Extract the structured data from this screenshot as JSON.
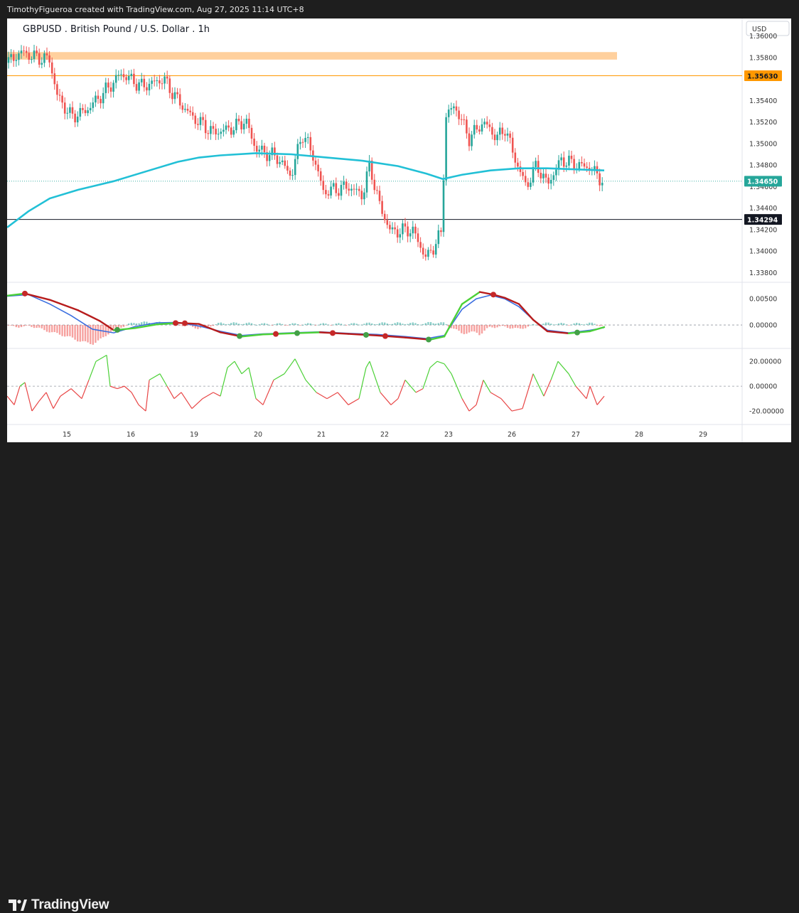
{
  "header": {
    "watermark": "TimothyFigueroa created with TradingView.com, Aug 27, 2025 11:14 UTC+8"
  },
  "footer": {
    "brand": "TradingView"
  },
  "colors": {
    "up": "#26a69a",
    "down": "#ef5350",
    "ma": "#22c0d6",
    "zone": "#ffa94d",
    "macd_line": "#3b6fe0",
    "signal_line": "#b71c1c",
    "osc_up": "#4cd137",
    "osc_down": "#e84545",
    "dot_red": "#c62828",
    "dot_green": "#43a047"
  },
  "chart_data": [
    {
      "type": "candlestick",
      "title": "GBPUSD . British Pound / U.S. Dollar . 1h",
      "currency": "USD",
      "x_ticks": [
        "15",
        "16",
        "19",
        "20",
        "21",
        "22",
        "23",
        "26",
        "27",
        "28",
        "29"
      ],
      "y_ticks": [
        "1.36000",
        "1.35800",
        "1.35400",
        "1.35200",
        "1.35000",
        "1.34800",
        "1.34600",
        "1.34400",
        "1.34200",
        "1.34000",
        "1.33800"
      ],
      "ylim": [
        1.3375,
        1.3603
      ],
      "price_labels": [
        {
          "value": 1.3563,
          "text": "1.35630",
          "color": "#ff9800",
          "text_color": "#131722"
        },
        {
          "value": 1.3465,
          "text": "1.34650",
          "color": "#26a69a",
          "text_color": "#ffffff"
        },
        {
          "value": 1.34294,
          "text": "1.34294",
          "color": "#131722",
          "text_color": "#ffffff"
        }
      ],
      "resistance_zone": [
        1.3578,
        1.3585
      ],
      "horizontal_lines": [
        1.3563,
        1.34294
      ],
      "moving_average": {
        "points": [
          [
            0,
            1.3422
          ],
          [
            30,
            1.3437
          ],
          [
            60,
            1.3449
          ],
          [
            100,
            1.3457
          ],
          [
            150,
            1.3465
          ],
          [
            200,
            1.3475
          ],
          [
            240,
            1.3483
          ],
          [
            270,
            1.3487
          ],
          [
            300,
            1.3489
          ],
          [
            350,
            1.3491
          ],
          [
            400,
            1.349
          ],
          [
            450,
            1.3487
          ],
          [
            500,
            1.3484
          ],
          [
            550,
            1.3479
          ],
          [
            590,
            1.3472
          ],
          [
            613,
            1.3467
          ],
          [
            640,
            1.3471
          ],
          [
            680,
            1.3475
          ],
          [
            720,
            1.3477
          ],
          [
            760,
            1.3477
          ],
          [
            800,
            1.3476
          ],
          [
            840,
            1.3475
          ]
        ]
      },
      "candle_path": [
        [
          0,
          1.3575
        ],
        [
          20,
          1.3585
        ],
        [
          40,
          1.358
        ],
        [
          60,
          1.3578
        ],
        [
          70,
          1.3545
        ],
        [
          90,
          1.3525
        ],
        [
          110,
          1.353
        ],
        [
          140,
          1.355
        ],
        [
          160,
          1.3565
        ],
        [
          190,
          1.3553
        ],
        [
          220,
          1.356
        ],
        [
          240,
          1.354
        ],
        [
          260,
          1.3525
        ],
        [
          290,
          1.351
        ],
        [
          320,
          1.3515
        ],
        [
          335,
          1.3522
        ],
        [
          350,
          1.3495
        ],
        [
          380,
          1.3487
        ],
        [
          400,
          1.347
        ],
        [
          415,
          1.351
        ],
        [
          430,
          1.349
        ],
        [
          445,
          1.3455
        ],
        [
          480,
          1.346
        ],
        [
          500,
          1.3452
        ],
        [
          510,
          1.348
        ],
        [
          525,
          1.344
        ],
        [
          540,
          1.3418
        ],
        [
          570,
          1.342
        ],
        [
          590,
          1.3393
        ],
        [
          612,
          1.3418
        ],
        [
          616,
          1.3525
        ],
        [
          630,
          1.3535
        ],
        [
          650,
          1.3505
        ],
        [
          670,
          1.352
        ],
        [
          690,
          1.3505
        ],
        [
          700,
          1.3515
        ],
        [
          715,
          1.3485
        ],
        [
          730,
          1.346
        ],
        [
          745,
          1.348
        ],
        [
          760,
          1.3462
        ],
        [
          780,
          1.3485
        ],
        [
          800,
          1.348
        ],
        [
          820,
          1.3478
        ],
        [
          838,
          1.3465
        ]
      ]
    },
    {
      "type": "line",
      "name": "macd",
      "y_ticks": [
        "0.00500",
        "0.00000"
      ],
      "ylim": [
        -0.0042,
        0.0072
      ],
      "macd": [
        [
          0,
          0.0055
        ],
        [
          30,
          0.0058
        ],
        [
          60,
          0.004
        ],
        [
          90,
          0.0018
        ],
        [
          120,
          -0.0008
        ],
        [
          150,
          -0.0015
        ],
        [
          180,
          -0.0003
        ],
        [
          210,
          0.0004
        ],
        [
          240,
          0.0005
        ],
        [
          270,
          -0.0002
        ],
        [
          300,
          -0.0012
        ],
        [
          330,
          -0.002
        ],
        [
          360,
          -0.0017
        ],
        [
          400,
          -0.0015
        ],
        [
          440,
          -0.0013
        ],
        [
          480,
          -0.0016
        ],
        [
          520,
          -0.0018
        ],
        [
          560,
          -0.0022
        ],
        [
          590,
          -0.0026
        ],
        [
          615,
          -0.002
        ],
        [
          640,
          0.003
        ],
        [
          660,
          0.005
        ],
        [
          680,
          0.0057
        ],
        [
          700,
          0.005
        ],
        [
          720,
          0.0035
        ],
        [
          740,
          0.001
        ],
        [
          760,
          -0.001
        ],
        [
          790,
          -0.0015
        ],
        [
          820,
          -0.001
        ],
        [
          840,
          -0.0005
        ]
      ],
      "signal": [
        [
          0,
          0.0056
        ],
        [
          25,
          0.006
        ],
        [
          60,
          0.0048
        ],
        [
          100,
          0.0028
        ],
        [
          130,
          0.0008
        ],
        [
          150,
          -0.001
        ],
        [
          180,
          -0.0006
        ],
        [
          210,
          0.0001
        ],
        [
          240,
          0.0004
        ],
        [
          270,
          0.0002
        ],
        [
          300,
          -0.0014
        ],
        [
          330,
          -0.0022
        ],
        [
          360,
          -0.0018
        ],
        [
          400,
          -0.0016
        ],
        [
          440,
          -0.0014
        ],
        [
          480,
          -0.0017
        ],
        [
          520,
          -0.002
        ],
        [
          560,
          -0.0024
        ],
        [
          595,
          -0.0028
        ],
        [
          615,
          -0.0022
        ],
        [
          640,
          0.004
        ],
        [
          665,
          0.0063
        ],
        [
          684,
          0.0058
        ],
        [
          700,
          0.0052
        ],
        [
          720,
          0.004
        ],
        [
          740,
          0.001
        ],
        [
          760,
          -0.0012
        ],
        [
          790,
          -0.0016
        ],
        [
          820,
          -0.0012
        ],
        [
          840,
          -0.0004
        ]
      ],
      "dots": [
        {
          "x": 25,
          "color": "red"
        },
        {
          "x": 155,
          "color": "green"
        },
        {
          "x": 237,
          "color": "red"
        },
        {
          "x": 250,
          "color": "red"
        },
        {
          "x": 327,
          "color": "green"
        },
        {
          "x": 378,
          "color": "red"
        },
        {
          "x": 408,
          "color": "green"
        },
        {
          "x": 458,
          "color": "red"
        },
        {
          "x": 505,
          "color": "green"
        },
        {
          "x": 532,
          "color": "red"
        },
        {
          "x": 593,
          "color": "green"
        },
        {
          "x": 684,
          "color": "red"
        },
        {
          "x": 802,
          "color": "green"
        }
      ]
    },
    {
      "type": "line",
      "name": "oscillator",
      "y_ticks": [
        "20.00000",
        "0.00000",
        "-20.00000"
      ],
      "ylim": [
        -28,
        27
      ],
      "points": [
        [
          0,
          -8
        ],
        [
          10,
          -15
        ],
        [
          18,
          0
        ],
        [
          25,
          3
        ],
        [
          35,
          -20
        ],
        [
          45,
          -12
        ],
        [
          55,
          -5
        ],
        [
          65,
          -18
        ],
        [
          75,
          -8
        ],
        [
          90,
          -2
        ],
        [
          105,
          -10
        ],
        [
          115,
          5
        ],
        [
          125,
          20
        ],
        [
          140,
          25
        ],
        [
          145,
          0
        ],
        [
          155,
          -2
        ],
        [
          165,
          0
        ],
        [
          175,
          -5
        ],
        [
          185,
          -15
        ],
        [
          195,
          -20
        ],
        [
          200,
          5
        ],
        [
          215,
          10
        ],
        [
          225,
          0
        ],
        [
          235,
          -10
        ],
        [
          245,
          -5
        ],
        [
          260,
          -18
        ],
        [
          275,
          -10
        ],
        [
          290,
          -5
        ],
        [
          300,
          -8
        ],
        [
          310,
          15
        ],
        [
          320,
          20
        ],
        [
          330,
          10
        ],
        [
          340,
          15
        ],
        [
          350,
          -10
        ],
        [
          360,
          -15
        ],
        [
          375,
          5
        ],
        [
          390,
          10
        ],
        [
          405,
          22
        ],
        [
          420,
          5
        ],
        [
          435,
          -5
        ],
        [
          450,
          -10
        ],
        [
          465,
          -5
        ],
        [
          480,
          -15
        ],
        [
          495,
          -10
        ],
        [
          505,
          15
        ],
        [
          510,
          20
        ],
        [
          525,
          -5
        ],
        [
          540,
          -15
        ],
        [
          550,
          -10
        ],
        [
          560,
          5
        ],
        [
          575,
          -5
        ],
        [
          585,
          -2
        ],
        [
          595,
          15
        ],
        [
          605,
          20
        ],
        [
          615,
          18
        ],
        [
          625,
          10
        ],
        [
          640,
          -10
        ],
        [
          650,
          -20
        ],
        [
          660,
          -15
        ],
        [
          670,
          5
        ],
        [
          680,
          -5
        ],
        [
          695,
          -10
        ],
        [
          710,
          -20
        ],
        [
          725,
          -18
        ],
        [
          740,
          10
        ],
        [
          755,
          -8
        ],
        [
          765,
          5
        ],
        [
          775,
          20
        ],
        [
          790,
          10
        ],
        [
          800,
          0
        ],
        [
          815,
          -10
        ],
        [
          820,
          0
        ],
        [
          830,
          -15
        ],
        [
          840,
          -8
        ]
      ]
    }
  ]
}
